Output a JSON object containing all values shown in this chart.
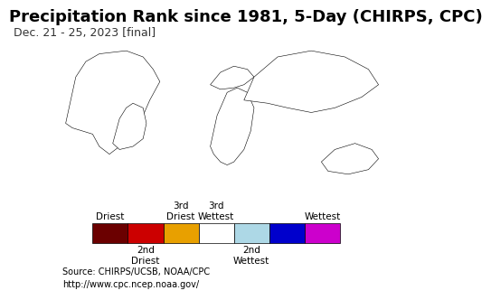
{
  "title": "Precipitation Rank since 1981, 5-Day (CHIRPS, CPC)",
  "subtitle": "Dec. 21 - 25, 2023 [final]",
  "title_fontsize": 13,
  "subtitle_fontsize": 9,
  "legend_colors": [
    "#6b0000",
    "#cc0000",
    "#e8a000",
    "#ffffff",
    "#add8e6",
    "#0000cc",
    "#cc00cc"
  ],
  "legend_top_labels": [
    "Driest",
    "",
    "3rd\nDriest",
    "3rd\nWettest",
    "",
    "Wettest"
  ],
  "legend_bottom_labels": [
    "",
    "2nd\nDriest",
    "",
    "",
    "2nd\nWettest",
    ""
  ],
  "source_text": "Source: CHIRPS/UCSB, NOAA/CPC\nhttp://www.cpc.ncep.noaa.gov/",
  "map_bg_color": "#a0d8ef",
  "land_color": "#ffffff",
  "legend_bg_color": "#f0f0f0",
  "bottom_bg_color": "#e8e8e8",
  "border_color": "#000000"
}
